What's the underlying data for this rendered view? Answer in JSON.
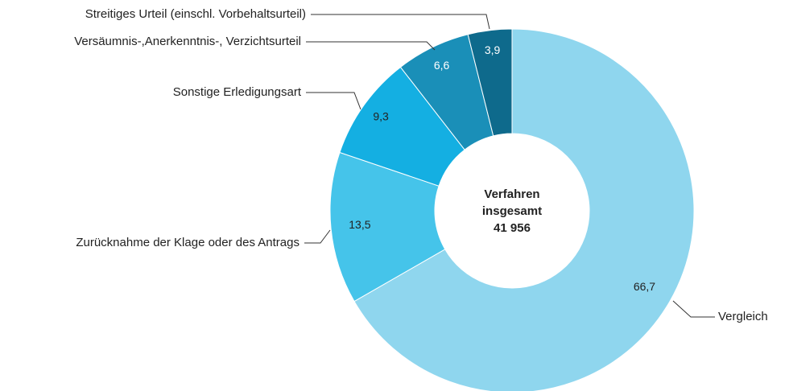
{
  "chart_data": {
    "type": "donut",
    "categories": [
      "Vergleich",
      "Zurücknahme der Klage oder des Antrags",
      "Sonstige Erledigungsart",
      "Versäumnis-,Anerkenntnis-, Verzichtsurteil",
      "Streitiges Urteil (einschl. Vorbehaltsurteil)"
    ],
    "values": [
      66.7,
      13.5,
      9.3,
      6.6,
      3.9
    ],
    "value_labels": [
      "66,7",
      "13,5",
      "9,3",
      "6,6",
      "3,9"
    ],
    "colors": [
      "#8fd6ee",
      "#45c4ea",
      "#14afe2",
      "#1a8fb8",
      "#0e6a8c"
    ],
    "center_text": [
      "Verfahren",
      "insgesamt",
      "41 956"
    ]
  }
}
